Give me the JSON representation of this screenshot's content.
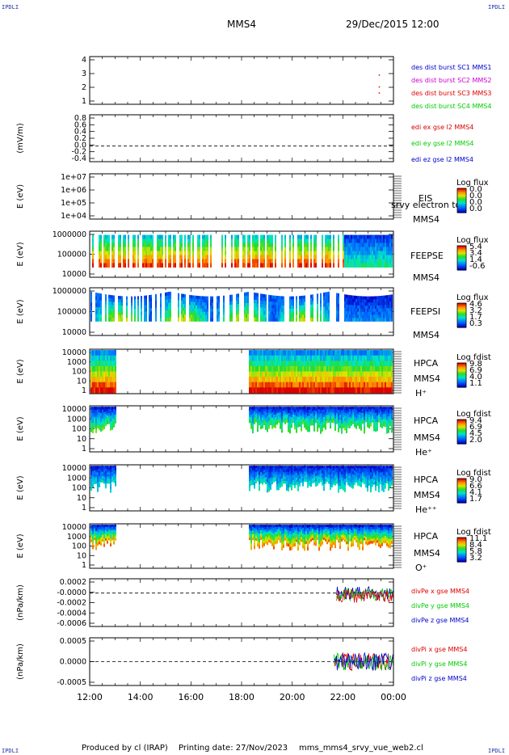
{
  "corners": {
    "tl": "IPDLI",
    "tr": "IPDLI",
    "bl": "IPDLI",
    "br": "IPDLI"
  },
  "header": {
    "spacecraft": "MMS4",
    "date": "29/Dec/2015 12:00"
  },
  "footer": {
    "produced": "Produced by cl (IRAP)",
    "printing": "Printing date: 27/Nov/2023",
    "file": "mms_mms4_srvy_vue_web2.cl"
  },
  "colors": {
    "blue": "#0000cc",
    "magenta": "#cc00cc",
    "red": "#dd0000",
    "green": "#00cc00",
    "frame": "#000000"
  },
  "chart_data": [
    {
      "type": "scatter",
      "ylabel": "",
      "yticks": [
        "4",
        "3",
        "2",
        "1"
      ],
      "ylim": [
        0.5,
        4.5
      ],
      "legend": [
        {
          "text": "des dist burst SC1 MMS1",
          "color": "#0000cc"
        },
        {
          "text": "des dist burst SC2 MMS2",
          "color": "#cc00cc"
        },
        {
          "text": "des dist burst SC3 MMS3",
          "color": "#dd0000"
        },
        {
          "text": "des dist burst SC4 MMS4",
          "color": "#00cc00"
        }
      ],
      "points": [
        {
          "x": "23:25",
          "y": 2
        },
        {
          "x": "23:25",
          "y": 3
        },
        {
          "x": "23:25",
          "y": 1.5
        }
      ]
    },
    {
      "type": "line",
      "ylabel": "(mV/m)",
      "yticks": [
        "0.8",
        "0.6",
        "0.4",
        "0.2",
        "0.0",
        "-0.2",
        "-0.4"
      ],
      "ylim": [
        -0.4,
        0.8
      ],
      "legend": [
        {
          "text": "edi ex gse l2 MMS4",
          "color": "#dd0000"
        },
        {
          "text": "edi ey gse l2 MMS4",
          "color": "#00cc00"
        },
        {
          "text": "edi ez gse l2 MMS4",
          "color": "#0000cc"
        }
      ]
    },
    {
      "type": "heatmap",
      "ylabel": "E (eV)",
      "yticks": [
        "1e+07",
        "1e+06",
        "1e+05",
        "1e+04"
      ],
      "ylim": [
        10000,
        10000000
      ],
      "scale": "log",
      "labels": [
        "EIS",
        "MMS4"
      ],
      "overlay": "srvy electron to",
      "colorbar": {
        "title": "Log flux",
        "ticks": [
          "0.0",
          "0.0",
          "0.0",
          "0.0"
        ]
      }
    },
    {
      "type": "heatmap",
      "ylabel": "E (eV)",
      "yticks": [
        "1000000",
        "100000",
        "10000"
      ],
      "scale": "log",
      "labels": [
        "FEEPSE",
        "MMS4"
      ],
      "colorbar": {
        "title": "Log flux",
        "ticks": [
          "5.4",
          "3.4",
          "1.4",
          "-0.6"
        ]
      }
    },
    {
      "type": "heatmap",
      "ylabel": "E (eV)",
      "yticks": [
        "1000000",
        "100000",
        "10000"
      ],
      "scale": "log",
      "labels": [
        "FEEPSI",
        "MMS4"
      ],
      "colorbar": {
        "title": "Log flux",
        "ticks": [
          "4.6",
          "3.2",
          "1.7",
          "0.3"
        ]
      }
    },
    {
      "type": "heatmap",
      "ylabel": "E (eV)",
      "yticks": [
        "10000",
        "1000",
        "100",
        "10",
        "1"
      ],
      "scale": "log",
      "labels": [
        "HPCA",
        "MMS4",
        "H⁺"
      ],
      "colorbar": {
        "title": "Log fdist",
        "ticks": [
          "9.8",
          "6.9",
          "4.0",
          "1.1"
        ]
      }
    },
    {
      "type": "heatmap",
      "ylabel": "E (eV)",
      "yticks": [
        "10000",
        "1000",
        "100",
        "10",
        "1"
      ],
      "scale": "log",
      "labels": [
        "HPCA",
        "MMS4",
        "He⁺"
      ],
      "colorbar": {
        "title": "Log fdist",
        "ticks": [
          "9.4",
          "6.9",
          "4.5",
          "2.0"
        ]
      }
    },
    {
      "type": "heatmap",
      "ylabel": "E (eV)",
      "yticks": [
        "10000",
        "1000",
        "100",
        "10",
        "1"
      ],
      "scale": "log",
      "labels": [
        "HPCA",
        "MMS4",
        "He⁺⁺"
      ],
      "colorbar": {
        "title": "Log fdist",
        "ticks": [
          "9.0",
          "6.6",
          "4.1",
          "1.7"
        ]
      }
    },
    {
      "type": "heatmap",
      "ylabel": "E (eV)",
      "yticks": [
        "10000",
        "1000",
        "100",
        "10",
        "1"
      ],
      "scale": "log",
      "labels": [
        "HPCA",
        "MMS4",
        "O⁺"
      ],
      "colorbar": {
        "title": "Log fdist",
        "ticks": [
          "11.1",
          "8.4",
          "5.8",
          "3.2"
        ]
      }
    },
    {
      "type": "line",
      "ylabel": "(nPa/km)",
      "yticks": [
        "0.0002",
        "-0.0000",
        "-0.0002",
        "-0.0004",
        "-0.0006"
      ],
      "ylim": [
        -0.0007,
        0.0003
      ],
      "legend": [
        {
          "text": "divPe x gse MMS4",
          "color": "#dd0000"
        },
        {
          "text": "divPe y gse MMS4",
          "color": "#00cc00"
        },
        {
          "text": "divPe z gse MMS4",
          "color": "#0000cc"
        }
      ]
    },
    {
      "type": "line",
      "ylabel": "(nPa/km)",
      "yticks": [
        "0.0005",
        "0.0000",
        "-0.0005"
      ],
      "ylim": [
        -0.0008,
        0.0008
      ],
      "legend": [
        {
          "text": "divPi x gse MMS4",
          "color": "#dd0000"
        },
        {
          "text": "divPi y gse MMS4",
          "color": "#00cc00"
        },
        {
          "text": "divPi z gse MMS4",
          "color": "#0000cc"
        }
      ]
    }
  ],
  "xaxis": {
    "ticks": [
      "12:00",
      "14:00",
      "16:00",
      "18:00",
      "20:00",
      "22:00",
      "00:00"
    ]
  }
}
